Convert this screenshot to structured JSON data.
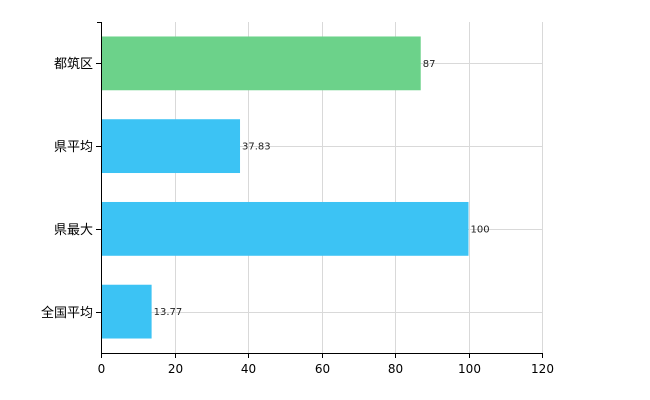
{
  "chart_data": {
    "type": "bar",
    "orientation": "horizontal",
    "categories": [
      "都筑区",
      "県平均",
      "県最大",
      "全国平均"
    ],
    "values": [
      87,
      37.83,
      100,
      13.77
    ],
    "value_labels": [
      "87",
      "37.83",
      "100",
      "13.77"
    ],
    "bar_colors": [
      "#6cd28a",
      "#3cc3f4",
      "#3cc3f4",
      "#3cc3f4"
    ],
    "xlim": [
      0,
      120
    ],
    "x_ticks": [
      0,
      20,
      40,
      60,
      80,
      100,
      120
    ],
    "grid": true,
    "title": "",
    "xlabel": "",
    "ylabel": ""
  }
}
